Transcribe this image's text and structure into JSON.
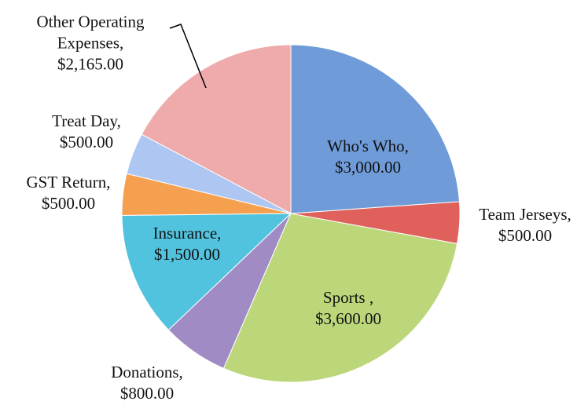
{
  "chart_data": {
    "type": "pie",
    "categories": [
      "Who's Who,",
      "Team Jerseys,",
      "Sports ,",
      "Donations,",
      "Insurance,",
      "GST Return,",
      "Treat Day,",
      "Other Operating Expenses,"
    ],
    "values": [
      3000,
      500,
      3600,
      800,
      1500,
      500,
      500,
      2165
    ],
    "value_labels": [
      "$3,000.00",
      "$500.00",
      "$3,600.00",
      "$800.00",
      "$1,500.00",
      "$500.00",
      "$500.00",
      "$2,165.00"
    ],
    "colors": [
      "#6f9bd8",
      "#e0605c",
      "#bcd77a",
      "#a08bc4",
      "#52c3de",
      "#f5a04e",
      "#adc6f2",
      "#efabab"
    ]
  }
}
